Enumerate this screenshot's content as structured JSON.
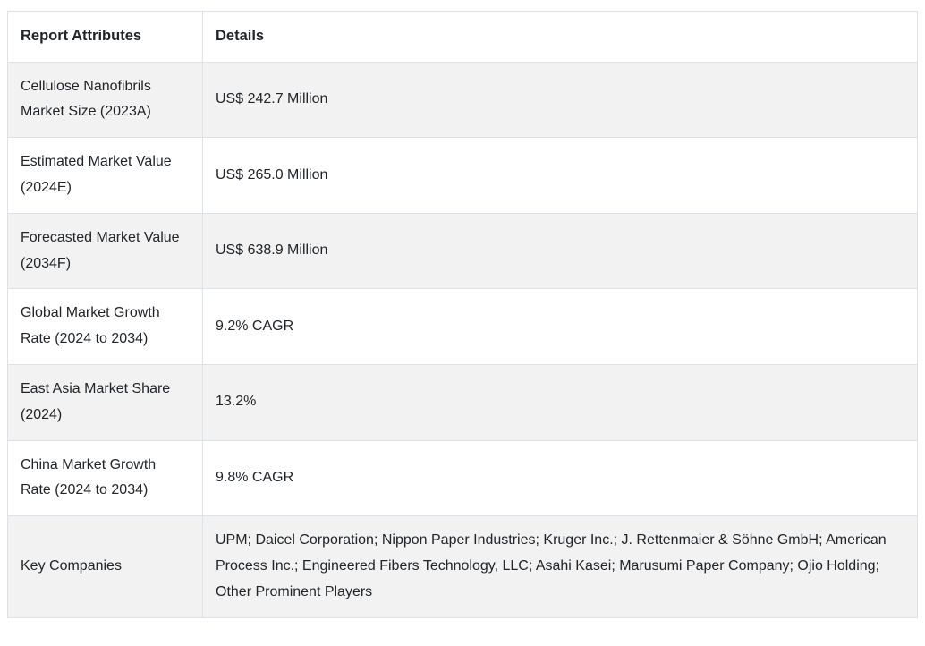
{
  "table": {
    "headers": {
      "attribute": "Report Attributes",
      "detail": "Details"
    },
    "rows": [
      {
        "attribute": "Cellulose Nanofibrils Market Size (2023A)",
        "detail": "US$ 242.7 Million"
      },
      {
        "attribute": "Estimated Market Value (2024E)",
        "detail": "US$ 265.0 Million"
      },
      {
        "attribute": "Forecasted Market Value (2034F)",
        "detail": "US$ 638.9 Million"
      },
      {
        "attribute": "Global Market Growth Rate (2024 to 2034)",
        "detail": "9.2% CAGR"
      },
      {
        "attribute": "East Asia Market Share (2024)",
        "detail": "13.2%"
      },
      {
        "attribute": "China Market Growth Rate (2024 to 2034)",
        "detail": "9.8% CAGR"
      },
      {
        "attribute": "Key Companies",
        "detail": "UPM; Daicel Corporation; Nippon Paper Industries; Kruger Inc.; J. Rettenmaier & Söhne GmbH; American Process Inc.; Engineered Fibers Technology, LLC; Asahi Kasei; Marusumi Paper Company; Ojio Holding; Other Prominent Players"
      }
    ],
    "colors": {
      "row_alt_bg": "#f2f2f2",
      "row_bg": "#ffffff",
      "border": "#dee2e6",
      "text": "#212529"
    }
  }
}
